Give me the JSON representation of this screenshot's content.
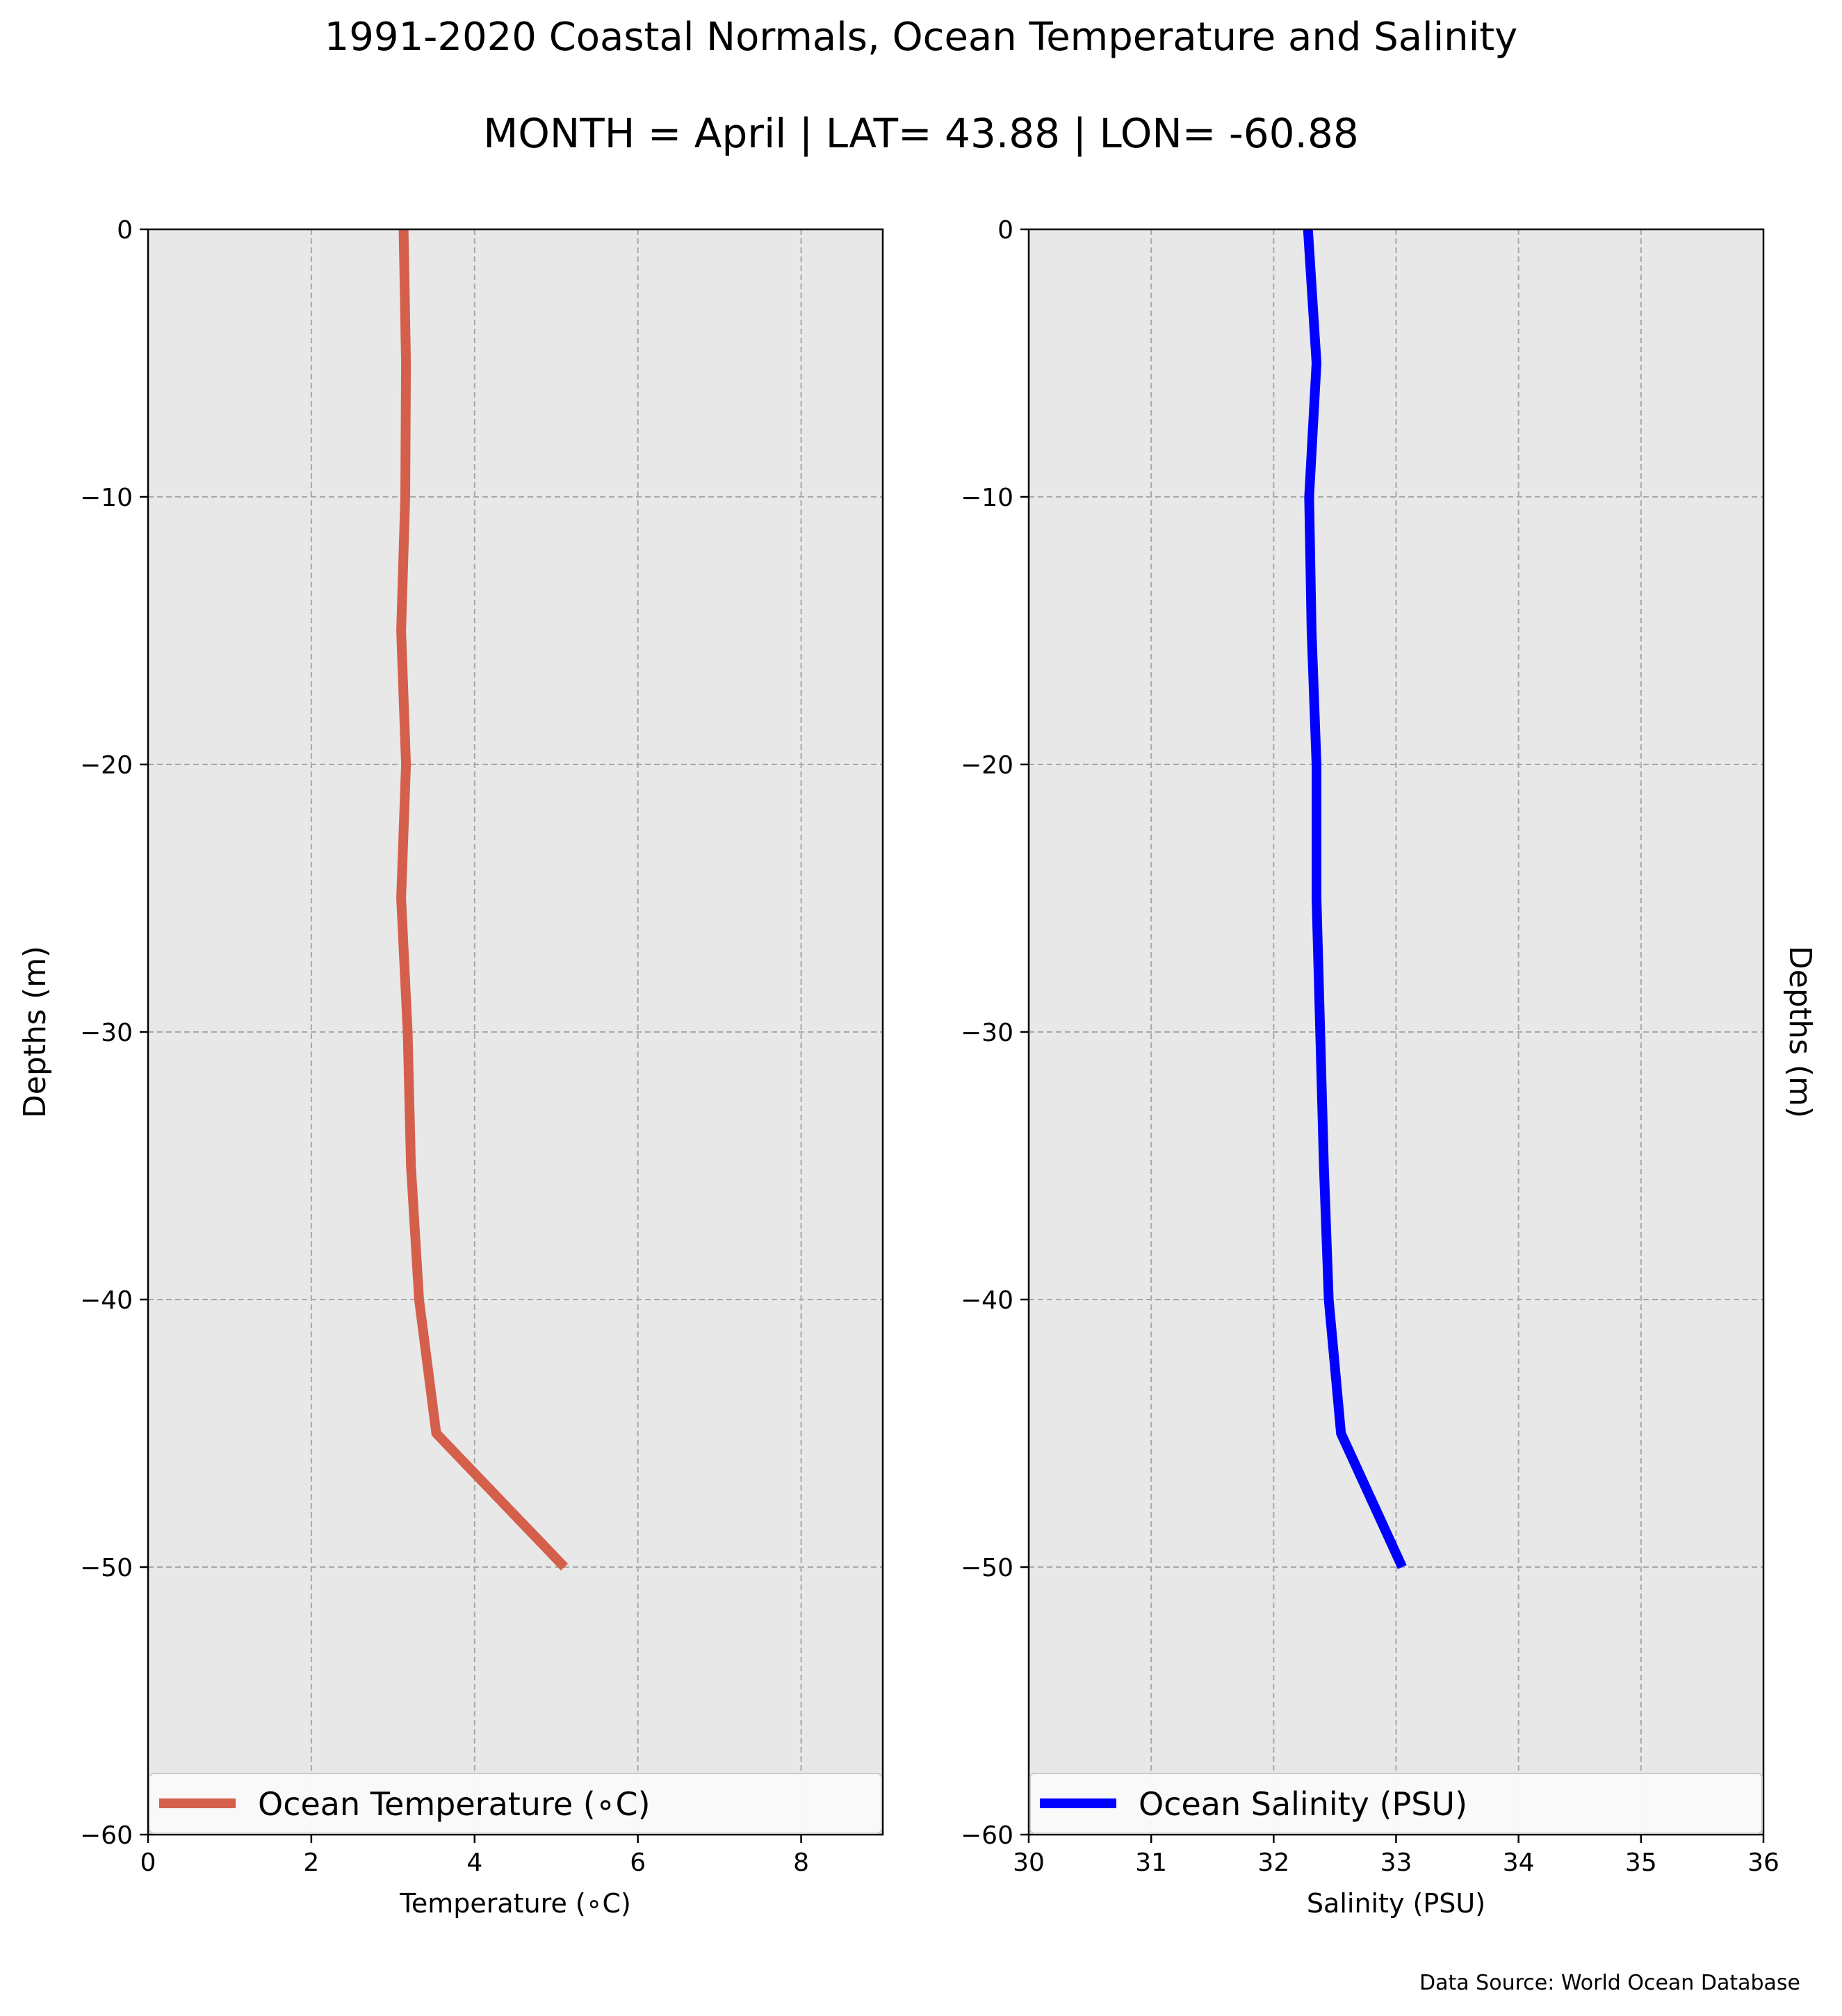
{
  "header": {
    "title": "1991-2020 Coastal Normals, Ocean Temperature and Salinity",
    "subtitle": "MONTH = April | LAT= 43.88 | LON= -60.88"
  },
  "footer": {
    "source": "Data Source: World Ocean Database"
  },
  "chart_data": [
    {
      "type": "line",
      "xlabel": "Temperature (∘C)",
      "ylabel": "Depths (m)",
      "xlim": [
        0,
        9
      ],
      "ylim": [
        -60,
        0
      ],
      "xticks": [
        0,
        2,
        4,
        6,
        8
      ],
      "xtick_labels": [
        "0",
        "2",
        "4",
        "6",
        "8"
      ],
      "yticks": [
        0,
        -10,
        -20,
        -30,
        -40,
        -50,
        -60
      ],
      "ytick_labels": [
        "0",
        "−10",
        "−20",
        "−30",
        "−40",
        "−50",
        "−60"
      ],
      "grid": true,
      "legend_position": "lower-center",
      "ylabel_side": "left",
      "series": [
        {
          "name": "Ocean Temperature (∘C)",
          "color": "#d45f4b",
          "x": [
            3.13,
            3.16,
            3.15,
            3.1,
            3.16,
            3.1,
            3.18,
            3.22,
            3.32,
            3.53,
            5.1
          ],
          "y": [
            0,
            -5,
            -10,
            -15,
            -20,
            -25,
            -30,
            -35,
            -40,
            -45,
            -50
          ]
        }
      ]
    },
    {
      "type": "line",
      "xlabel": "Salinity (PSU)",
      "ylabel": "Depths (m)",
      "xlim": [
        30,
        36
      ],
      "ylim": [
        -60,
        0
      ],
      "xticks": [
        30,
        31,
        32,
        33,
        34,
        35,
        36
      ],
      "xtick_labels": [
        "30",
        "31",
        "32",
        "33",
        "34",
        "35",
        "36"
      ],
      "yticks": [
        0,
        -10,
        -20,
        -30,
        -40,
        -50,
        -60
      ],
      "ytick_labels": [
        "0",
        "−10",
        "−20",
        "−30",
        "−40",
        "−50",
        "−60"
      ],
      "grid": true,
      "legend_position": "lower-center",
      "ylabel_side": "right",
      "series": [
        {
          "name": "Ocean Salinity (PSU)",
          "color": "#0000ff",
          "x": [
            32.28,
            32.35,
            32.29,
            32.31,
            32.35,
            32.35,
            32.38,
            32.41,
            32.45,
            32.55,
            33.05
          ],
          "y": [
            0,
            -5,
            -10,
            -15,
            -20,
            -25,
            -30,
            -35,
            -40,
            -45,
            -50
          ]
        }
      ]
    }
  ]
}
